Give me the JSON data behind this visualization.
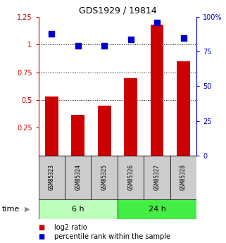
{
  "title": "GDS1929 / 19814",
  "categories": [
    "GSM85323",
    "GSM85324",
    "GSM85325",
    "GSM85326",
    "GSM85327",
    "GSM85328"
  ],
  "log2_ratio": [
    0.53,
    0.37,
    0.45,
    0.7,
    1.18,
    0.85
  ],
  "percentile_rank": [
    88,
    79,
    79,
    84,
    96,
    85
  ],
  "bar_color": "#cc0000",
  "dot_color": "#0000cc",
  "ylim_left": [
    0,
    1.25
  ],
  "ylim_right": [
    0,
    100
  ],
  "yticks_left": [
    0.25,
    0.5,
    0.75,
    1.0,
    1.25
  ],
  "yticks_right": [
    0,
    25,
    50,
    75,
    100
  ],
  "ytick_labels_left": [
    "0.25",
    "0.5",
    "0.75",
    "1",
    "1.25"
  ],
  "ytick_labels_right": [
    "0",
    "25",
    "50",
    "75",
    "100%"
  ],
  "hlines": [
    0.5,
    0.75,
    1.0
  ],
  "group_labels": [
    "6 h",
    "24 h"
  ],
  "group_ranges": [
    [
      0,
      3
    ],
    [
      3,
      6
    ]
  ],
  "group_color_light": "#bbffbb",
  "group_color_dark": "#44ee44",
  "sample_box_color": "#cccccc",
  "time_label": "time",
  "legend_items": [
    "log2 ratio",
    "percentile rank within the sample"
  ],
  "legend_colors": [
    "#cc0000",
    "#0000cc"
  ],
  "title_color": "#000000",
  "left_axis_color": "#cc0000",
  "right_axis_color": "#0000cc",
  "bar_width": 0.5,
  "dot_size": 30,
  "fig_width": 3.21,
  "fig_height": 3.45,
  "dpi": 100
}
